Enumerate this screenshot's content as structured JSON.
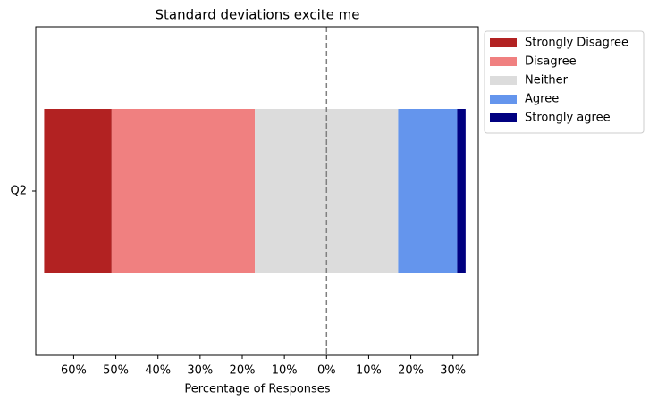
{
  "chart_data": {
    "type": "diverging_bar",
    "title": "Standard deviations excite me",
    "xlabel": "Percentage of Responses",
    "categories": [
      "Q2"
    ],
    "series": [
      {
        "name": "Strongly Disagree",
        "color": "#b22222",
        "values": [
          16
        ]
      },
      {
        "name": "Disagree",
        "color": "#f08080",
        "values": [
          34
        ]
      },
      {
        "name": "Neither",
        "color": "#dcdcdc",
        "values": [
          34
        ]
      },
      {
        "name": "Agree",
        "color": "#6495ed",
        "values": [
          14
        ]
      },
      {
        "name": "Strongly agree",
        "color": "#000080",
        "values": [
          2
        ]
      }
    ],
    "xlim": [
      -69,
      36
    ],
    "xticks": [
      {
        "value": -60,
        "label": "60%"
      },
      {
        "value": -50,
        "label": "50%"
      },
      {
        "value": -40,
        "label": "40%"
      },
      {
        "value": -30,
        "label": "30%"
      },
      {
        "value": -20,
        "label": "20%"
      },
      {
        "value": -10,
        "label": "10%"
      },
      {
        "value": 0,
        "label": "0%"
      },
      {
        "value": 10,
        "label": "10%"
      },
      {
        "value": 20,
        "label": "20%"
      },
      {
        "value": 30,
        "label": "30%"
      }
    ],
    "legend": "outside-upper-right"
  }
}
